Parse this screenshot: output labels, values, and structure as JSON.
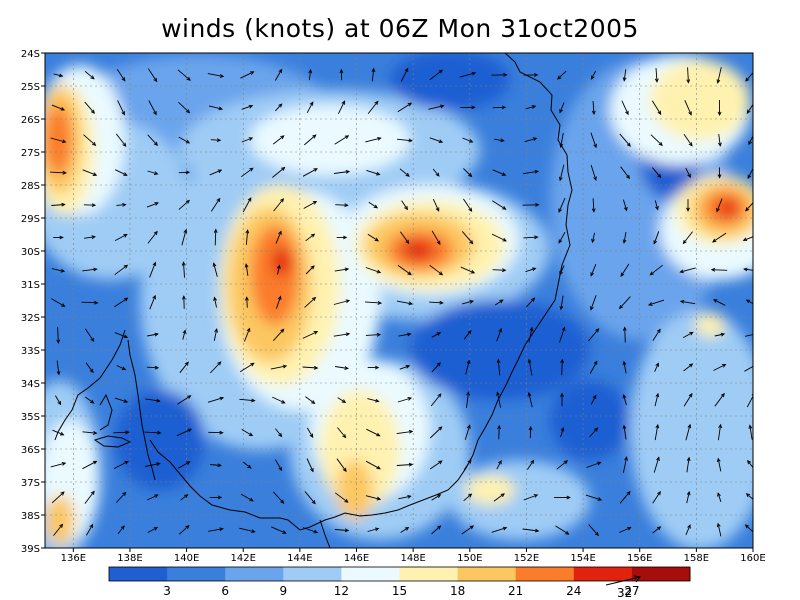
{
  "title": "winds (knots) at 06Z Mon 31oct2005",
  "map": {
    "lat_labels": [
      "24S",
      "25S",
      "26S",
      "27S",
      "28S",
      "29S",
      "30S",
      "31S",
      "32S",
      "33S",
      "34S",
      "35S",
      "36S",
      "37S",
      "38S",
      "39S"
    ],
    "lon_labels": [
      "136E",
      "138E",
      "140E",
      "142E",
      "144E",
      "146E",
      "148E",
      "150E",
      "152E",
      "154E",
      "156E",
      "158E",
      "160E"
    ],
    "lon_range": [
      135,
      160
    ],
    "lat_range": [
      -39,
      -24
    ],
    "grid_lines": true,
    "background_color": "#3a7fdc",
    "arrow_color": "#000000",
    "coastline_color": "#000000"
  },
  "chart_data": {
    "type": "heatmap",
    "title": "winds (knots) at 06Z Mon 31oct2005",
    "units": "knots",
    "colorbar_levels": [
      "3",
      "6",
      "9",
      "12",
      "15",
      "18",
      "21",
      "24",
      "27"
    ],
    "colorbar_colors": [
      "#1f5fd2",
      "#3a7fdc",
      "#6aa4ec",
      "#9fccf5",
      "#eafaff",
      "#fff2b0",
      "#fcc760",
      "#fb7c2a",
      "#e1220e",
      "#a50e0a"
    ],
    "vector_reference_label": "32",
    "high_speed_regions": [
      {
        "lon": 136.0,
        "lat": -26.6,
        "speed": 24
      },
      {
        "lon": 142.8,
        "lat": -30.5,
        "speed": 25
      },
      {
        "lon": 148.2,
        "lat": -29.9,
        "speed": 27
      },
      {
        "lon": 158.8,
        "lat": -28.8,
        "speed": 28
      },
      {
        "lon": 142.4,
        "lat": -32.6,
        "speed": 22
      }
    ]
  }
}
